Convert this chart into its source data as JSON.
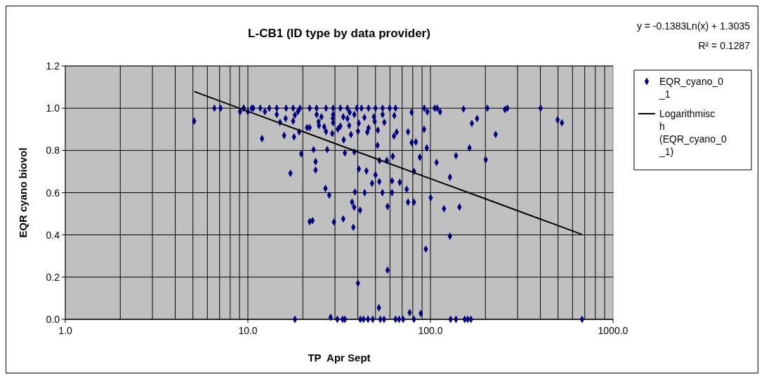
{
  "chart_data": {
    "type": "scatter",
    "title": "L-CB1 (ID type by data provider)",
    "xlabel": "TP  Apr Sept",
    "ylabel": "EQR cyano biovol",
    "log": "x",
    "xlim": [
      1,
      1000
    ],
    "xticks": [
      {
        "value": 1,
        "label": "1.0"
      },
      {
        "value": 10,
        "label": "10.0"
      },
      {
        "value": 100,
        "label": "100.0"
      },
      {
        "value": 1000,
        "label": "1000.0"
      }
    ],
    "ylim": [
      0,
      1.2
    ],
    "yticks": [
      {
        "value": 0,
        "label": "0.0"
      },
      {
        "value": 0.2,
        "label": "0.2"
      },
      {
        "value": 0.4,
        "label": "0.4"
      },
      {
        "value": 0.6,
        "label": "0.6"
      },
      {
        "value": 0.8,
        "label": "0.8"
      },
      {
        "value": 1,
        "label": "1.0"
      },
      {
        "value": 1.2,
        "label": "1.2"
      }
    ],
    "grid": true,
    "legend": "right",
    "annotations": [
      "y = -0.1383Ln(x) + 1.3035",
      "R² = 0.1287"
    ],
    "series": [
      {
        "name": "EQR_cyano_0_1",
        "marker": "diamond",
        "color": "#000080",
        "x": [
          5.08,
          6.56,
          7.09,
          9.06,
          9.5,
          10,
          10.5,
          9.48,
          10.7,
          11.7,
          13.1,
          14.4,
          16.2,
          17.7,
          19.3,
          21.8,
          23.8,
          26.8,
          29.3,
          32.1,
          35.1,
          39.5,
          41.9,
          45.8,
          50,
          54.7,
          59.8,
          64.4,
          12.4,
          14.4,
          18.8,
          23.8,
          29.3,
          36.1,
          38.3,
          54.7,
          11.95,
          15,
          16.1,
          15.8,
          17.9,
          17.7,
          18.1,
          19.1,
          19.6,
          17.1,
          21.1,
          21.8,
          22.9,
          23.5,
          23.5,
          24.4,
          24.5,
          26.2,
          26.8,
          27.2,
          25.3,
          26.6,
          27.9,
          21.8,
          22.6,
          29.2,
          29.3,
          29,
          29.6,
          31.1,
          32.1,
          33.5,
          34,
          33.3,
          33.3,
          35.1,
          35.9,
          36.7,
          38.3,
          37.2,
          38.2,
          37.8,
          38.6,
          40.1,
          40.5,
          40.5,
          41.2,
          40.1,
          43.5,
          43.6,
          44.6,
          45.1,
          45.8,
          47.9,
          50,
          49,
          49.5,
          51.3,
          51.5,
          52.6,
          52.5,
          52.2,
          54.6,
          55.9,
          57.7,
          58.2,
          58.2,
          61.6,
          61.6,
          62.2,
          63.1,
          63.4,
          65.3,
          67.9,
          74.1,
          75.4,
          81.2,
          81.2,
          78.9,
          83.2,
          75.4,
          78.9,
          87.5,
          92.3,
          92.5,
          96.2,
          95.5,
          94.3,
          76.9,
          88.5,
          18.1,
          28.4,
          30.9,
          33,
          34,
          41.3,
          43,
          45.5,
          48.3,
          53.1,
          55.7,
          64.4,
          67.3,
          70.9,
          81.2,
          105.5,
          108.9,
          112.9,
          100.3,
          108,
          128.9,
          138,
          154,
          160,
          166.7,
          118.7,
          127.9,
          127.9,
          138,
          144.2,
          151.7,
          163.7,
          168.6,
          180,
          200.8,
          205,
          227.5,
          256,
          264,
          401,
          497,
          525,
          677
        ],
        "values": [
          0.939,
          1,
          1,
          0.984,
          1,
          0.984,
          1,
          1,
          1,
          1,
          1,
          1,
          1,
          1,
          1,
          1,
          1,
          1,
          1,
          1,
          1,
          1,
          1,
          1,
          1,
          1,
          1,
          1,
          0.984,
          0.97,
          0.984,
          0.97,
          0.97,
          0.98,
          0.97,
          0.97,
          0.856,
          0.933,
          0.951,
          0.871,
          0.864,
          0.939,
          0.967,
          0.888,
          0.784,
          0.692,
          0.908,
          0.908,
          0.804,
          0.747,
          0.707,
          0.936,
          0.918,
          0.912,
          0.889,
          0.804,
          0.959,
          0.62,
          0.588,
          0.463,
          0.468,
          0.952,
          0.931,
          0.88,
          0.461,
          0.901,
          0.915,
          0.85,
          0.788,
          0.476,
          0.959,
          0.951,
          0.918,
          0.875,
          0.793,
          0.555,
          0.531,
          0.436,
          0.603,
          0.891,
          0.929,
          0.712,
          0.517,
          0.171,
          0.956,
          0.6,
          0.703,
          0.887,
          0.906,
          0.644,
          0.684,
          0.959,
          0.937,
          0.824,
          0.896,
          0.752,
          0.652,
          0.055,
          0.6,
          0.933,
          0.752,
          0.535,
          0.233,
          0.656,
          0.6,
          0.772,
          0.868,
          0.965,
          0.887,
          0.649,
          0.616,
          0.555,
          0.555,
          0.701,
          0.837,
          0.84,
          0.888,
          0.981,
          0.768,
          0.9,
          1,
          0.983,
          0.812,
          0.333,
          0.032,
          0.028,
          0,
          0.01,
          0,
          0,
          0,
          0,
          0,
          0,
          0,
          0,
          0,
          0,
          0,
          0,
          0,
          1,
          1,
          0.983,
          0.576,
          0.743,
          0,
          0,
          0,
          0,
          0,
          0.524,
          0.394,
          0.673,
          0.775,
          0.532,
          0.996,
          0.812,
          0.928,
          0.951,
          0.756,
          1,
          0.876,
          0.994,
          1,
          1,
          0.945,
          0.931,
          0
        ]
      },
      {
        "name": "Logarithmisch (EQR_cyano_0_1)",
        "type": "line",
        "marker": "none",
        "color": "#000000",
        "x": [
          5.08,
          10,
          20,
          50,
          100,
          200,
          500,
          677
        ],
        "values": [
          1.079,
          0.985,
          0.889,
          0.762,
          0.666,
          0.571,
          0.444,
          0.402
        ]
      }
    ]
  }
}
